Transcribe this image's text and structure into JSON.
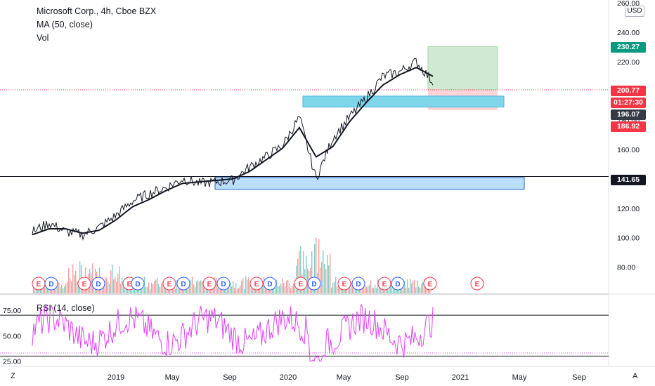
{
  "legend": {
    "title": "Microsoft Corp., 4h, Cboe BZX",
    "ma": "MA (50, close)",
    "vol": "Vol",
    "rsi": "RSI (14, close)"
  },
  "currency": "USD",
  "corner_left": "Z",
  "corner_right": "A",
  "price_axis": {
    "ticks": [
      "260.00",
      "240.00",
      "220.00",
      "200.00",
      "180.00",
      "160.00",
      "140.00",
      "120.00",
      "100.00",
      "80.00"
    ],
    "tick_values": [
      260,
      240,
      220,
      200,
      180,
      160,
      140,
      120,
      100,
      80
    ]
  },
  "rsi_axis": {
    "ticks": [
      "75.00",
      "50.00",
      "25.00"
    ],
    "tick_values": [
      75,
      50,
      25
    ]
  },
  "time_axis": [
    "2019",
    "May",
    "Sep",
    "2020",
    "May",
    "Sep",
    "2021",
    "May",
    "Sep"
  ],
  "price_tags": [
    {
      "label": "230.27",
      "color": "#089981"
    },
    {
      "label": "200.77",
      "color": "#f23645"
    },
    {
      "label": "01:27:30",
      "color": "#f23645"
    },
    {
      "label": "196.07",
      "color": "#363a45"
    },
    {
      "label": "186.92",
      "color": "#f23645"
    },
    {
      "label": "141.65",
      "color": "#131722"
    }
  ],
  "event_markers": {
    "earnings_label": "E",
    "dividend_label": "D"
  },
  "colors": {
    "price_line": "#131722",
    "ma_line": "#131722",
    "rsi_line": "#e040fb",
    "volume_up": "#26a69a",
    "volume_down": "#ef5350",
    "target_zone": "#c8e6c9",
    "stop_zone": "#ffcdd2",
    "resistance_box": "#7fd6ea",
    "support_box": "#bbdefb"
  },
  "chart_data": {
    "type": "line",
    "title": "Microsoft Corp., 4h, Cboe BZX",
    "x": [
      "2018-10",
      "2018-11",
      "2018-12",
      "2019-01",
      "2019-02",
      "2019-03",
      "2019-04",
      "2019-05",
      "2019-06",
      "2019-07",
      "2019-08",
      "2019-09",
      "2019-10",
      "2019-11",
      "2019-12",
      "2020-01",
      "2020-02",
      "2020-03",
      "2020-04",
      "2020-05",
      "2020-06",
      "2020-07",
      "2020-08",
      "2020-09",
      "2020-10"
    ],
    "series": [
      {
        "name": "Microsoft Corp., 4h, Cboe BZX",
        "values": [
          104,
          110,
          104,
          102,
          107,
          115,
          125,
          130,
          134,
          140,
          137,
          138,
          139,
          148,
          155,
          163,
          182,
          140,
          168,
          182,
          195,
          210,
          213,
          220,
          206
        ]
      },
      {
        "name": "MA (50, close)",
        "values": [
          102,
          106,
          106,
          103,
          105,
          112,
          121,
          126,
          132,
          137,
          138,
          139,
          140,
          145,
          153,
          161,
          175,
          155,
          162,
          179,
          192,
          204,
          211,
          216,
          210
        ]
      }
    ],
    "rsi": {
      "name": "RSI (14, close)",
      "levels": [
        70,
        30
      ],
      "ylim": [
        20,
        90
      ]
    },
    "horizontal_levels": [
      141.65,
      200.77
    ],
    "ylim": [
      62,
      262
    ]
  }
}
